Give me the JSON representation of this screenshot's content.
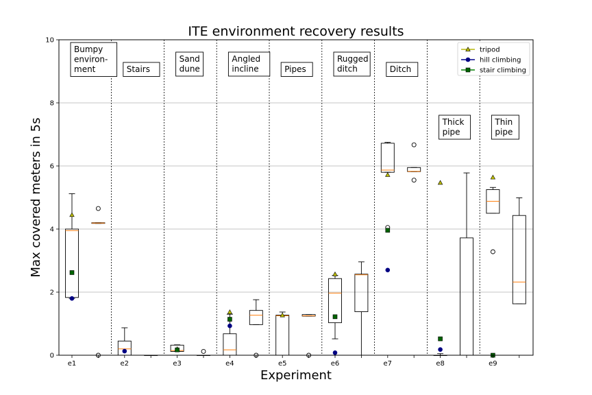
{
  "chart_data": {
    "type": "box",
    "title": "ITE environment recovery results",
    "xlabel": "Experiment",
    "ylabel": "Max covered meters in 5s",
    "ylim": [
      0,
      10
    ],
    "yticks": [
      "0",
      "2",
      "4",
      "6",
      "8",
      "10"
    ],
    "grid": "horizontal",
    "legend_position": "top-right",
    "categories": [
      "e1",
      "e2",
      "e3",
      "e4",
      "e5",
      "e6",
      "e7",
      "e8",
      "e9"
    ],
    "environments": [
      {
        "lines": [
          "Bumpy",
          "environ-",
          "ment"
        ]
      },
      {
        "lines": [
          "Stairs"
        ]
      },
      {
        "lines": [
          "Sand",
          "dune"
        ]
      },
      {
        "lines": [
          "Angled",
          "incline"
        ]
      },
      {
        "lines": [
          "Pipes"
        ]
      },
      {
        "lines": [
          "Rugged",
          "ditch"
        ]
      },
      {
        "lines": [
          "Ditch"
        ]
      },
      {
        "lines": [
          "Thick",
          "pipe"
        ]
      },
      {
        "lines": [
          "Thin",
          "pipe"
        ]
      }
    ],
    "series": [
      {
        "name": "tripod",
        "color": "#b5b50a",
        "fill": "#bfbf00",
        "marker": "triangle"
      },
      {
        "name": "hill climbing",
        "color": "#00008b",
        "fill": "#000080",
        "marker": "circle"
      },
      {
        "name": "stair climbing",
        "color": "#008000",
        "fill": "#006400",
        "marker": "square"
      }
    ],
    "boxes": [
      {
        "category": "e1",
        "position": 1,
        "whisker_low": 1.8,
        "q1": 1.83,
        "median": 3.95,
        "q3": 4.0,
        "whisker_high": 5.12,
        "outliers": []
      },
      {
        "category": "",
        "position": 2,
        "whisker_low": 4.18,
        "q1": 4.18,
        "median": 4.19,
        "q3": 4.2,
        "whisker_high": 4.2,
        "outliers": [
          4.65,
          0.0
        ]
      },
      {
        "category": "e2",
        "position": 3,
        "whisker_low": 0.0,
        "q1": 0.0,
        "median": 0.2,
        "q3": 0.45,
        "whisker_high": 0.87,
        "outliers": []
      },
      {
        "category": "",
        "position": 4,
        "whisker_low": 0.0,
        "q1": 0.0,
        "median": 0.0,
        "q3": 0.0,
        "whisker_high": 0.0,
        "outliers": []
      },
      {
        "category": "e3",
        "position": 5,
        "whisker_low": 0.12,
        "q1": 0.12,
        "median": 0.15,
        "q3": 0.32,
        "whisker_high": 0.33,
        "outliers": []
      },
      {
        "category": "",
        "position": 6,
        "whisker_low": 0.0,
        "q1": 0.0,
        "median": 0.0,
        "q3": 0.0,
        "whisker_high": 0.0,
        "outliers": [
          0.12
        ]
      },
      {
        "category": "e4",
        "position": 7,
        "whisker_low": 0.0,
        "q1": 0.0,
        "median": 0.17,
        "q3": 0.68,
        "whisker_high": 1.3,
        "outliers": []
      },
      {
        "category": "",
        "position": 8,
        "whisker_low": 0.97,
        "q1": 0.97,
        "median": 1.27,
        "q3": 1.42,
        "whisker_high": 1.76,
        "outliers": [
          0.0
        ]
      },
      {
        "category": "e5",
        "position": 9,
        "whisker_low": 0.0,
        "q1": 0.0,
        "median": 1.25,
        "q3": 1.27,
        "whisker_high": 1.37,
        "outliers": []
      },
      {
        "category": "",
        "position": 10,
        "whisker_low": 1.24,
        "q1": 1.24,
        "median": 1.25,
        "q3": 1.29,
        "whisker_high": 1.29,
        "outliers": [
          0.0
        ]
      },
      {
        "category": "e6",
        "position": 11,
        "whisker_low": 0.52,
        "q1": 1.03,
        "median": 1.97,
        "q3": 2.43,
        "whisker_high": 2.53,
        "outliers": []
      },
      {
        "category": "",
        "position": 12,
        "whisker_low": 0.0,
        "q1": 1.38,
        "median": 2.55,
        "q3": 2.57,
        "whisker_high": 2.96,
        "outliers": []
      },
      {
        "category": "e7",
        "position": 13,
        "whisker_low": 5.8,
        "q1": 5.8,
        "median": 5.87,
        "q3": 6.72,
        "whisker_high": 6.75,
        "outliers": [
          4.05
        ]
      },
      {
        "category": "",
        "position": 14,
        "whisker_low": 5.82,
        "q1": 5.82,
        "median": 5.83,
        "q3": 5.95,
        "whisker_high": 5.95,
        "outliers": [
          6.67,
          5.55
        ]
      },
      {
        "category": "e8",
        "position": 15,
        "whisker_low": 0.0,
        "q1": 0.0,
        "median": 0.0,
        "q3": 0.0,
        "whisker_high": 0.05,
        "outliers": []
      },
      {
        "category": "",
        "position": 16,
        "whisker_low": 0.0,
        "q1": 0.0,
        "median": 0.0,
        "q3": 3.72,
        "whisker_high": 5.78,
        "outliers": []
      },
      {
        "category": "e9",
        "position": 17,
        "whisker_low": 4.5,
        "q1": 4.5,
        "median": 4.88,
        "q3": 5.25,
        "whisker_high": 5.32,
        "outliers": [
          3.28
        ]
      },
      {
        "category": "",
        "position": 18,
        "whisker_low": 1.63,
        "q1": 1.63,
        "median": 2.32,
        "q3": 4.43,
        "whisker_high": 4.99,
        "outliers": []
      }
    ],
    "points": [
      {
        "series": "tripod",
        "position": 1,
        "value": 4.45
      },
      {
        "series": "hill climbing",
        "position": 1,
        "value": 1.8
      },
      {
        "series": "stair climbing",
        "position": 1,
        "value": 2.62
      },
      {
        "series": "hill climbing",
        "position": 3,
        "value": 0.13
      },
      {
        "series": "tripod",
        "position": 5,
        "value": 0.2
      },
      {
        "series": "stair climbing",
        "position": 5,
        "value": 0.17
      },
      {
        "series": "tripod",
        "position": 7,
        "value": 1.37
      },
      {
        "series": "stair climbing",
        "position": 7,
        "value": 1.14
      },
      {
        "series": "hill climbing",
        "position": 7,
        "value": 0.93
      },
      {
        "series": "tripod",
        "position": 9,
        "value": 1.27
      },
      {
        "series": "tripod",
        "position": 11,
        "value": 2.57
      },
      {
        "series": "stair climbing",
        "position": 11,
        "value": 1.22
      },
      {
        "series": "hill climbing",
        "position": 11,
        "value": 0.08
      },
      {
        "series": "tripod",
        "position": 13,
        "value": 5.72
      },
      {
        "series": "stair climbing",
        "position": 13,
        "value": 3.96
      },
      {
        "series": "hill climbing",
        "position": 13,
        "value": 2.7
      },
      {
        "series": "tripod",
        "position": 15,
        "value": 5.47
      },
      {
        "series": "stair climbing",
        "position": 15,
        "value": 0.52
      },
      {
        "series": "hill climbing",
        "position": 15,
        "value": 0.18
      },
      {
        "series": "tripod",
        "position": 17,
        "value": 5.64
      },
      {
        "series": "stair climbing",
        "position": 17,
        "value": 0.0
      }
    ]
  }
}
